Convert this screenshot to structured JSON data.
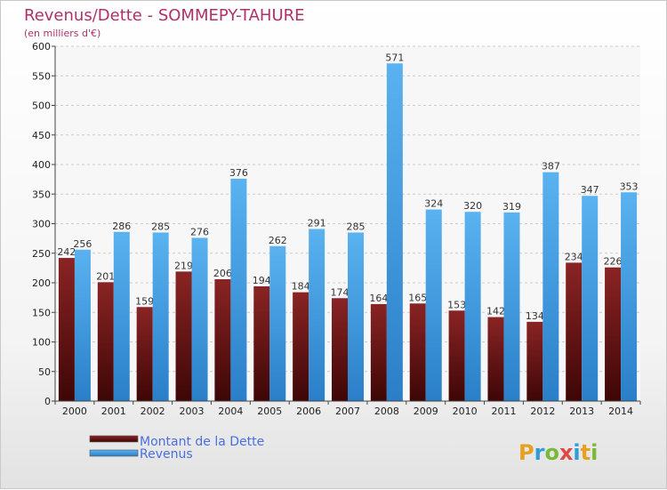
{
  "chart_data": {
    "type": "bar",
    "title": "Revenus/Dette - SOMMEPY-TAHURE",
    "subtitle": "(en milliers d'€)",
    "categories": [
      "2000",
      "2001",
      "2002",
      "2003",
      "2004",
      "2005",
      "2006",
      "2007",
      "2008",
      "2009",
      "2010",
      "2011",
      "2012",
      "2013",
      "2014"
    ],
    "series": [
      {
        "name": "Montant de la Dette",
        "color": "#7a1a1a",
        "values": [
          242,
          201,
          159,
          219,
          206,
          194,
          184,
          174,
          164,
          165,
          153,
          142,
          134,
          234,
          226
        ]
      },
      {
        "name": "Revenus",
        "color": "#4aa3e8",
        "values": [
          256,
          286,
          285,
          276,
          376,
          262,
          291,
          285,
          571,
          324,
          320,
          319,
          387,
          347,
          353
        ]
      }
    ],
    "ylim": [
      0,
      600
    ],
    "yticks": [
      0,
      50,
      100,
      150,
      200,
      250,
      300,
      350,
      400,
      450,
      500,
      550,
      600
    ],
    "grid": true,
    "legend_position": "bottom-left"
  },
  "logo": {
    "text": "Proxiti"
  }
}
